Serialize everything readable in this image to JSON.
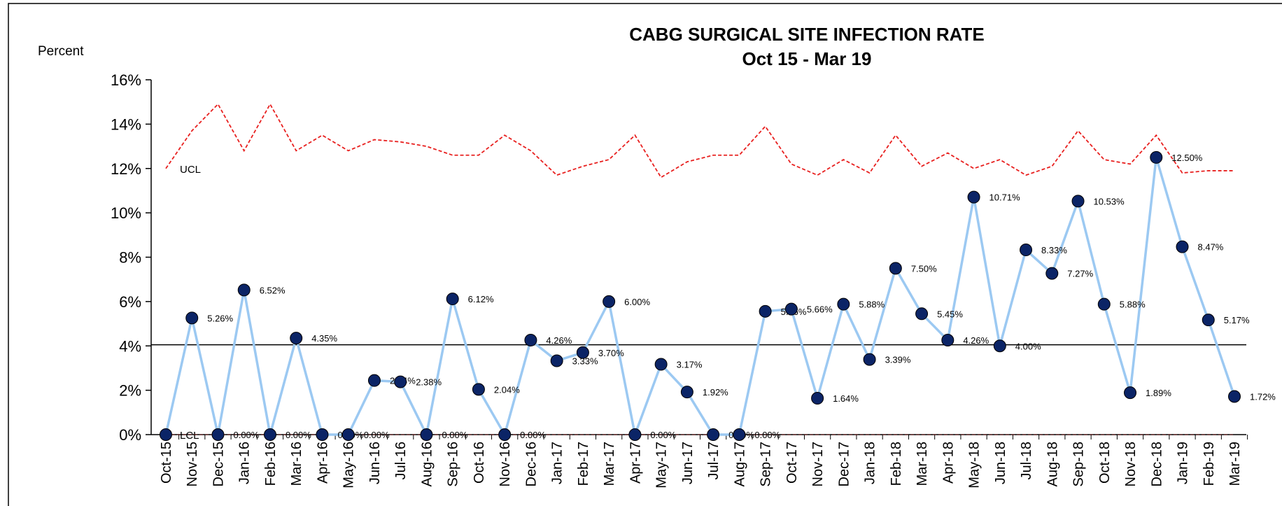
{
  "chart_data": {
    "type": "line",
    "title": "CABG SURGICAL SITE INFECTION  RATE",
    "subtitle": "Oct 15 - Mar 19",
    "y_label": "Percent",
    "categories": [
      "Oct-15",
      "Nov-15",
      "Dec-15",
      "Jan-16",
      "Feb-16",
      "Mar-16",
      "Apr-16",
      "May-16",
      "Jun-16",
      "Jul-16",
      "Aug-16",
      "Sep-16",
      "Oct-16",
      "Nov-16",
      "Dec-16",
      "Jan-17",
      "Feb-17",
      "Mar-17",
      "Apr-17",
      "May-17",
      "Jun-17",
      "Jul-17",
      "Aug-17",
      "Sep-17",
      "Oct-17",
      "Nov-17",
      "Dec-17",
      "Jan-18",
      "Feb-18",
      "Mar-18",
      "Apr-18",
      "May-18",
      "Jun-18",
      "Jul-18",
      "Aug-18",
      "Sep-18",
      "Oct-18",
      "Nov-18",
      "Dec-18",
      "Jan-19",
      "Feb-19",
      "Mar-19"
    ],
    "series": [
      {
        "color": "#9cc9f2",
        "marker_color": "#0b2466",
        "values": [
          0,
          5.26,
          0,
          6.52,
          0,
          4.35,
          0,
          0,
          2.44,
          2.38,
          0,
          6.12,
          2.04,
          0,
          4.26,
          3.33,
          3.7,
          6.0,
          0,
          3.17,
          1.92,
          0,
          0,
          5.56,
          5.66,
          1.64,
          5.88,
          3.39,
          7.5,
          5.45,
          4.26,
          10.71,
          4.0,
          8.33,
          7.27,
          10.53,
          5.88,
          1.89,
          12.5,
          8.47,
          5.17,
          1.72
        ],
        "value_labels": [
          null,
          "5.26%",
          "0.00%",
          "6.52%",
          "0.00%",
          "4.35%",
          "0.00%",
          "0.00%",
          "2.44%",
          "2.38%",
          "0.00%",
          "6.12%",
          "2.04%",
          "0.00%",
          "4.26%",
          "3.33%",
          "3.70%",
          "6.00%",
          "0.00%",
          "3.17%",
          "1.92%",
          "0.00%",
          "0.00%",
          "5.56%",
          "5.66%",
          "1.64%",
          "5.88%",
          "3.39%",
          "7.50%",
          "5.45%",
          "4.26%",
          "10.71%",
          "4.00%",
          "8.33%",
          "7.27%",
          "10.53%",
          "5.88%",
          "1.89%",
          "12.50%",
          "8.47%",
          "5.17%",
          "1.72%"
        ]
      }
    ],
    "ucl": {
      "label": "UCL",
      "color": "#e8201f",
      "values": [
        12.0,
        13.7,
        14.9,
        12.8,
        14.9,
        12.8,
        13.5,
        12.8,
        13.3,
        13.2,
        13.0,
        12.6,
        12.6,
        13.5,
        12.8,
        11.7,
        12.1,
        12.4,
        13.5,
        11.6,
        12.3,
        12.6,
        12.6,
        13.9,
        12.2,
        11.7,
        12.4,
        11.8,
        13.5,
        12.1,
        12.7,
        12.0,
        12.4,
        11.7,
        12.1,
        13.7,
        12.4,
        12.2,
        13.5,
        11.8,
        11.9,
        11.9
      ]
    },
    "lcl": {
      "label": "LCL",
      "value": 0
    },
    "center_line": {
      "value": 4.05,
      "color": "#000000"
    },
    "ylim": [
      0,
      16
    ],
    "yticks": [
      {
        "value": 0,
        "label": "0%"
      },
      {
        "value": 2,
        "label": "2%"
      },
      {
        "value": 4,
        "label": "4%"
      },
      {
        "value": 6,
        "label": "6%"
      },
      {
        "value": 8,
        "label": "8%"
      },
      {
        "value": 10,
        "label": "10%"
      },
      {
        "value": 12,
        "label": "12%"
      },
      {
        "value": 14,
        "label": "14%"
      },
      {
        "value": 16,
        "label": "16%"
      }
    ]
  }
}
